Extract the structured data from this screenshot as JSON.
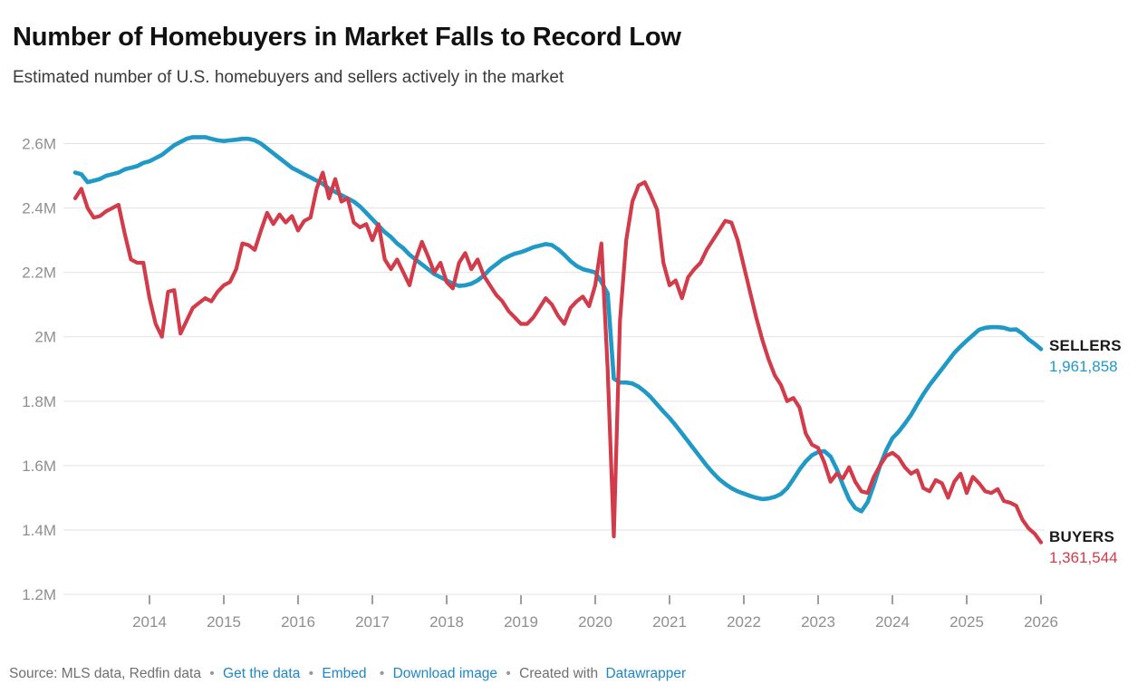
{
  "chart_data": {
    "type": "line",
    "title": "Number of Homebuyers in Market Falls to Record Low",
    "subtitle": "Estimated number of U.S. homebuyers and sellers actively in the market",
    "xlabel": "",
    "ylabel": "",
    "unit": "M",
    "x_start_year": 2013,
    "x_step_months": 1,
    "x_range": [
      2013.0,
      2026.0
    ],
    "ylim": [
      1.2,
      2.65
    ],
    "grid": "horizontal",
    "legend_position": "right-end-labels",
    "x_ticks": [
      "2014",
      "2015",
      "2016",
      "2017",
      "2018",
      "2019",
      "2020",
      "2021",
      "2022",
      "2023",
      "2024",
      "2025",
      "2026"
    ],
    "y_ticks": [
      {
        "value": 2.6,
        "label": "2.6M"
      },
      {
        "value": 2.4,
        "label": "2.4M"
      },
      {
        "value": 2.2,
        "label": "2.2M"
      },
      {
        "value": 2.0,
        "label": "2M"
      },
      {
        "value": 1.8,
        "label": "1.8M"
      },
      {
        "value": 1.6,
        "label": "1.6M"
      },
      {
        "value": 1.4,
        "label": "1.4M"
      },
      {
        "value": 1.2,
        "label": "1.2M"
      }
    ],
    "series": [
      {
        "name": "SELLERS",
        "end_label": "1,961,858",
        "end_value": 1961858,
        "color": "#2099c7",
        "values_millions": [
          2.51,
          2.505,
          2.48,
          2.485,
          2.49,
          2.5,
          2.505,
          2.51,
          2.52,
          2.525,
          2.53,
          2.54,
          2.545,
          2.555,
          2.565,
          2.58,
          2.595,
          2.605,
          2.615,
          2.62,
          2.62,
          2.62,
          2.615,
          2.61,
          2.608,
          2.61,
          2.612,
          2.615,
          2.615,
          2.61,
          2.6,
          2.585,
          2.57,
          2.555,
          2.54,
          2.525,
          2.515,
          2.505,
          2.495,
          2.485,
          2.475,
          2.46,
          2.45,
          2.44,
          2.43,
          2.42,
          2.405,
          2.385,
          2.365,
          2.345,
          2.325,
          2.31,
          2.29,
          2.275,
          2.255,
          2.24,
          2.225,
          2.21,
          2.195,
          2.185,
          2.175,
          2.165,
          2.158,
          2.16,
          2.165,
          2.175,
          2.19,
          2.21,
          2.225,
          2.24,
          2.25,
          2.258,
          2.263,
          2.27,
          2.278,
          2.283,
          2.288,
          2.285,
          2.272,
          2.255,
          2.235,
          2.22,
          2.21,
          2.205,
          2.2,
          2.17,
          2.135,
          1.87,
          1.858,
          1.858,
          1.855,
          1.845,
          1.83,
          1.812,
          1.79,
          1.768,
          1.748,
          1.725,
          1.7,
          1.675,
          1.65,
          1.625,
          1.6,
          1.578,
          1.558,
          1.543,
          1.53,
          1.52,
          1.513,
          1.506,
          1.5,
          1.496,
          1.498,
          1.503,
          1.512,
          1.53,
          1.558,
          1.588,
          1.613,
          1.632,
          1.642,
          1.645,
          1.628,
          1.59,
          1.54,
          1.495,
          1.468,
          1.458,
          1.487,
          1.54,
          1.6,
          1.648,
          1.685,
          1.705,
          1.73,
          1.757,
          1.79,
          1.822,
          1.85,
          1.875,
          1.9,
          1.925,
          1.95,
          1.97,
          1.988,
          2.005,
          2.022,
          2.028,
          2.03,
          2.03,
          2.028,
          2.022,
          2.023,
          2.01,
          1.992,
          1.978,
          1.9619
        ]
      },
      {
        "name": "BUYERS",
        "end_label": "1,361,544",
        "end_value": 1361544,
        "color": "#d23b49",
        "values_millions": [
          2.43,
          2.46,
          2.4,
          2.37,
          2.375,
          2.39,
          2.4,
          2.41,
          2.32,
          2.24,
          2.23,
          2.23,
          2.12,
          2.04,
          2.0,
          2.14,
          2.145,
          2.01,
          2.05,
          2.09,
          2.105,
          2.12,
          2.11,
          2.14,
          2.16,
          2.17,
          2.21,
          2.29,
          2.285,
          2.27,
          2.33,
          2.385,
          2.35,
          2.38,
          2.355,
          2.375,
          2.33,
          2.36,
          2.37,
          2.46,
          2.51,
          2.43,
          2.49,
          2.42,
          2.43,
          2.355,
          2.34,
          2.35,
          2.3,
          2.35,
          2.24,
          2.21,
          2.24,
          2.2,
          2.16,
          2.24,
          2.295,
          2.25,
          2.2,
          2.23,
          2.17,
          2.15,
          2.23,
          2.26,
          2.21,
          2.24,
          2.19,
          2.16,
          2.13,
          2.11,
          2.08,
          2.06,
          2.04,
          2.04,
          2.06,
          2.09,
          2.12,
          2.1,
          2.065,
          2.04,
          2.09,
          2.11,
          2.125,
          2.095,
          2.16,
          2.29,
          1.9,
          1.38,
          2.05,
          2.3,
          2.42,
          2.47,
          2.48,
          2.44,
          2.395,
          2.23,
          2.16,
          2.175,
          2.12,
          2.185,
          2.21,
          2.23,
          2.27,
          2.3,
          2.33,
          2.36,
          2.355,
          2.3,
          2.22,
          2.14,
          2.06,
          1.99,
          1.93,
          1.88,
          1.85,
          1.8,
          1.81,
          1.78,
          1.7,
          1.665,
          1.655,
          1.61,
          1.55,
          1.575,
          1.56,
          1.595,
          1.55,
          1.52,
          1.515,
          1.565,
          1.6,
          1.63,
          1.64,
          1.625,
          1.595,
          1.575,
          1.585,
          1.53,
          1.52,
          1.555,
          1.545,
          1.5,
          1.55,
          1.575,
          1.515,
          1.565,
          1.545,
          1.52,
          1.515,
          1.527,
          1.49,
          1.485,
          1.475,
          1.432,
          1.405,
          1.388,
          1.3615
        ]
      }
    ]
  },
  "footer": {
    "source": "Source: MLS data, Redfin data",
    "bullet": "•",
    "links": [
      {
        "label": "Get the data"
      },
      {
        "label": "Embed"
      },
      {
        "label": "Download image"
      }
    ],
    "created_with": "Created with",
    "creator": "Datawrapper"
  }
}
